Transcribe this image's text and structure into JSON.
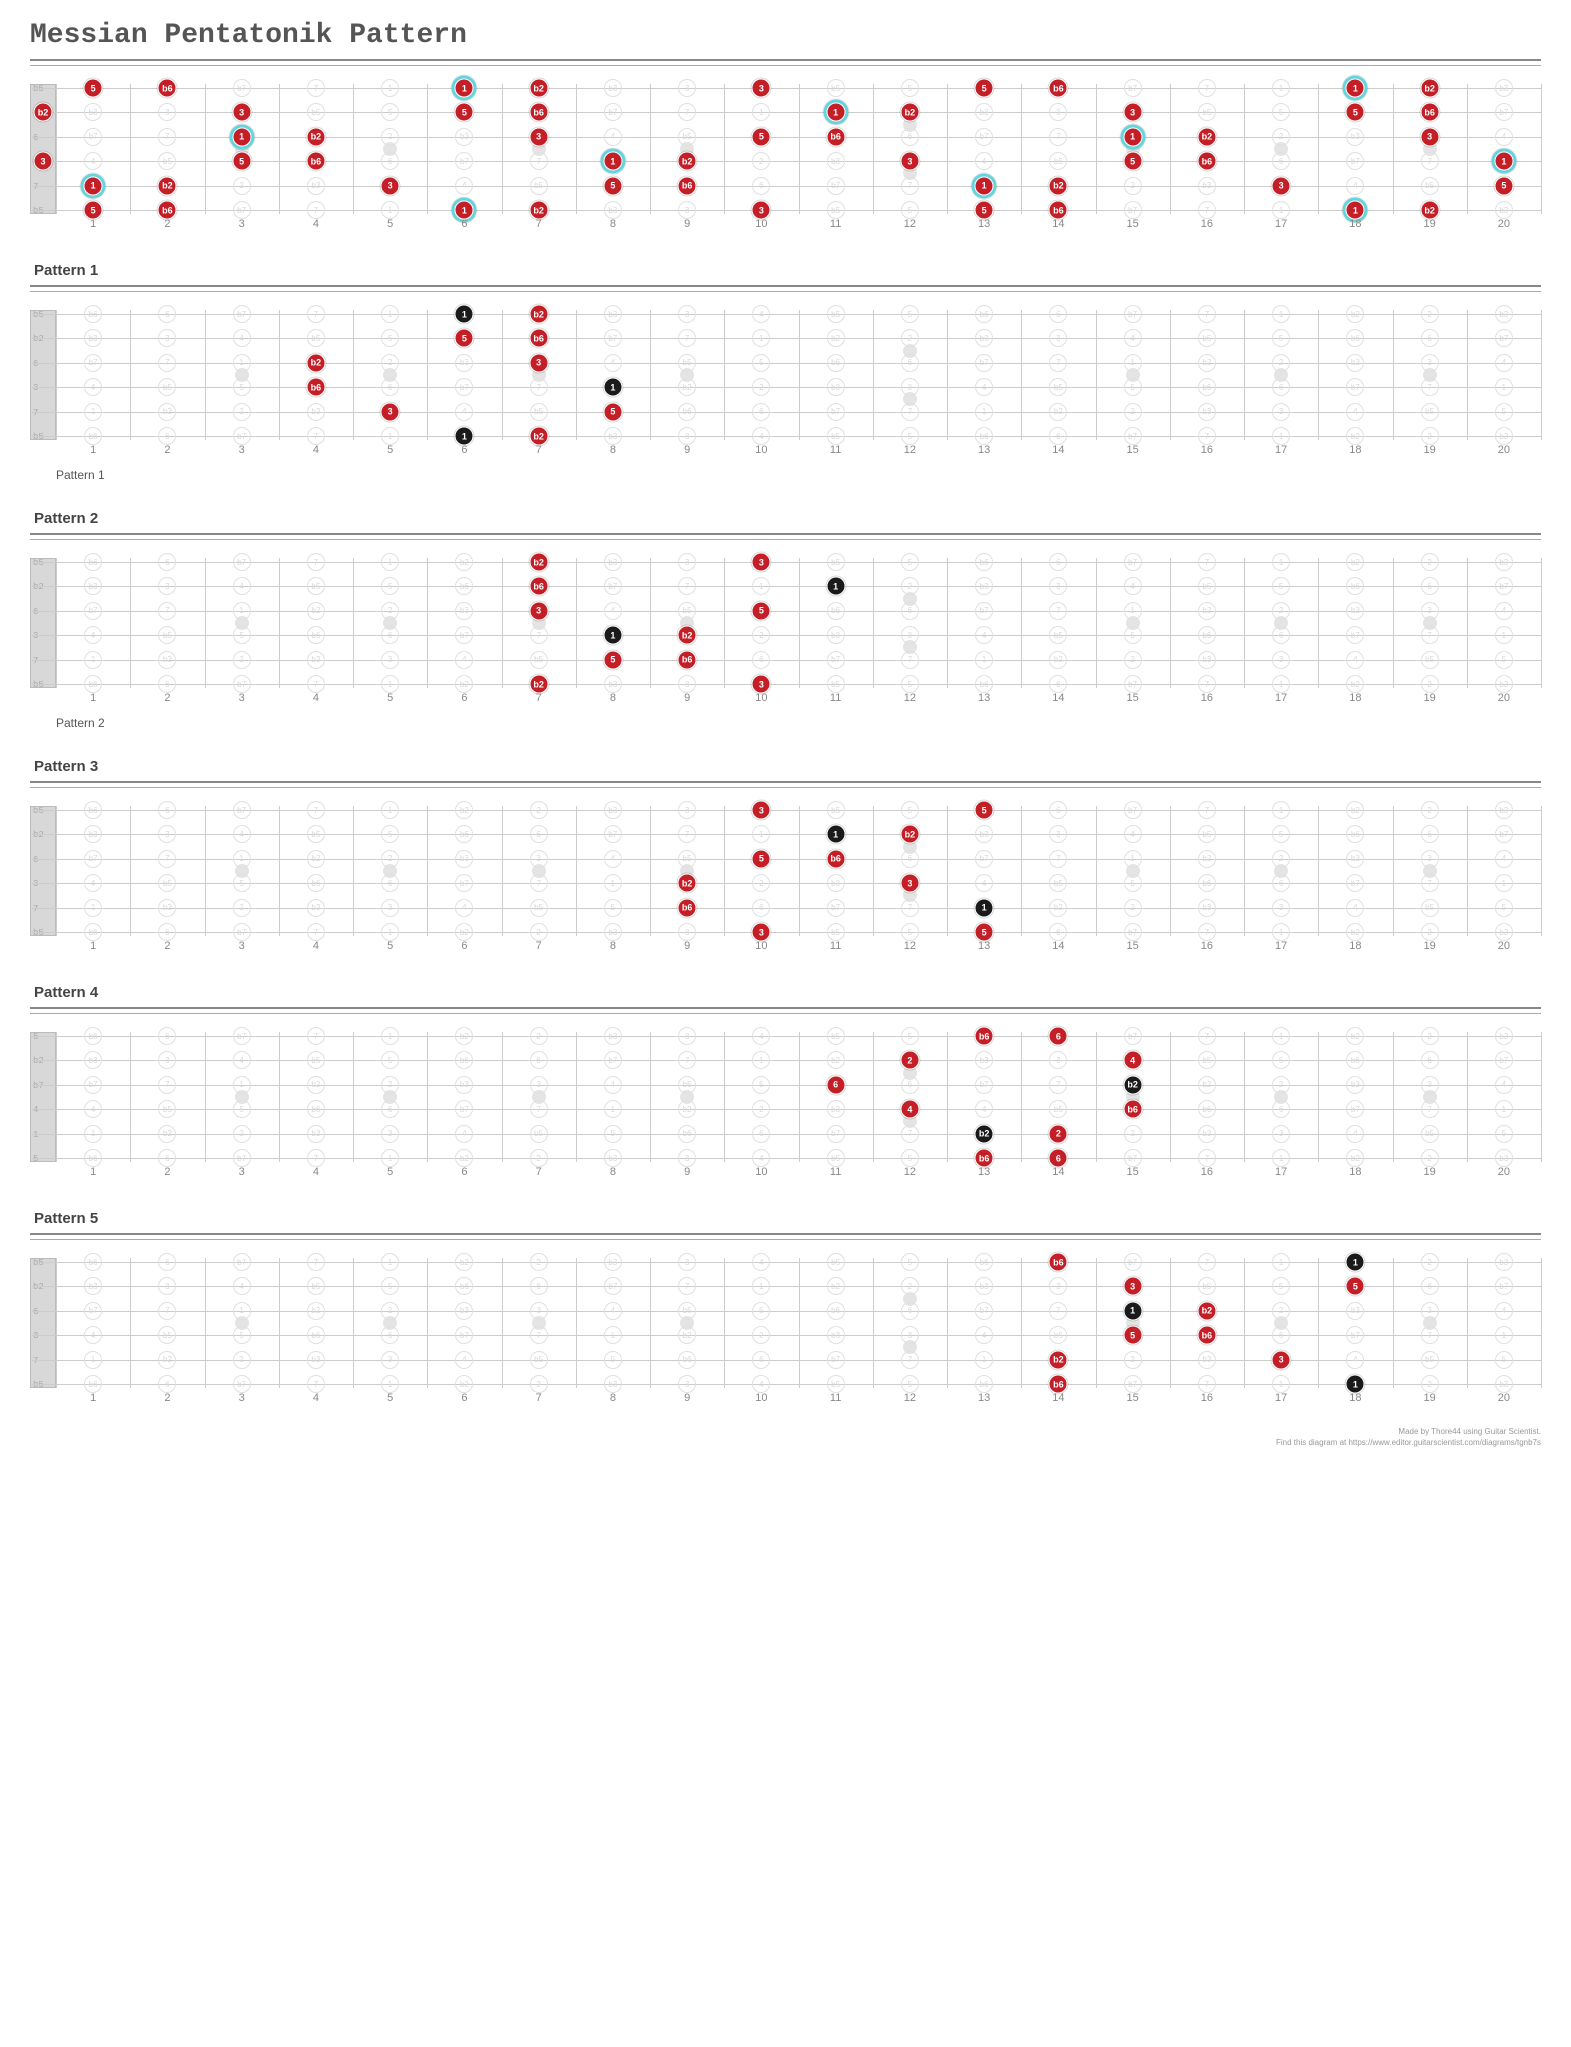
{
  "title": "Messian Pentatonik Pattern",
  "footer_line1": "Made by Thore44 using Guitar Scientist.",
  "footer_line2": "Find this diagram at https://www.editor.guitarscientist.com/diagrams/tgnb7s",
  "board": {
    "num_frets": 20,
    "num_strings": 6,
    "string_labels_main": [
      "b5",
      "b2",
      "6",
      "3",
      "7",
      "b5"
    ],
    "string_labels_p4": [
      "5",
      "b2",
      "b7",
      "4",
      "1",
      "5"
    ],
    "fret_markers_single": [
      3,
      5,
      7,
      9,
      15,
      17,
      19
    ],
    "fret_markers_double": [
      12
    ],
    "ghost_rows_main": [
      [
        "b6",
        "6",
        "b7",
        "7",
        "1",
        "b2",
        "2",
        "b3",
        "3",
        "4",
        "b5",
        "5",
        "b6",
        "6",
        "b7",
        "7",
        "1",
        "b2",
        "2",
        "b3"
      ],
      [
        "b3",
        "3",
        "4",
        "b5",
        "5",
        "b6",
        "6",
        "b7",
        "7",
        "1",
        "b2",
        "2",
        "b3",
        "3",
        "4",
        "b5",
        "5",
        "b6",
        "6",
        "b7"
      ],
      [
        "b7",
        "7",
        "1",
        "b2",
        "2",
        "b3",
        "3",
        "4",
        "b5",
        "5",
        "b6",
        "6",
        "b7",
        "7",
        "1",
        "b2",
        "2",
        "b3",
        "3",
        "4"
      ],
      [
        "4",
        "b5",
        "5",
        "b6",
        "6",
        "b7",
        "7",
        "1",
        "b2",
        "2",
        "b3",
        "3",
        "4",
        "b5",
        "5",
        "b6",
        "6",
        "b7",
        "7",
        "1"
      ],
      [
        "1",
        "b2",
        "2",
        "b3",
        "3",
        "4",
        "b5",
        "5",
        "b6",
        "6",
        "b7",
        "7",
        "1",
        "b2",
        "2",
        "b3",
        "3",
        "4",
        "b5",
        "5"
      ],
      [
        "b6",
        "6",
        "b7",
        "7",
        "1",
        "b2",
        "2",
        "b3",
        "3",
        "4",
        "b5",
        "5",
        "b6",
        "6",
        "b7",
        "7",
        "1",
        "b2",
        "2",
        "b3"
      ]
    ],
    "ghost_rows_p4": [
      [
        "b6",
        "6",
        "b7",
        "7",
        "1",
        "b2",
        "2",
        "b3",
        "3",
        "4",
        "b5",
        "5",
        "b6",
        "6",
        "b7",
        "7",
        "1",
        "b2",
        "2",
        "b3"
      ],
      [
        "b3",
        "3",
        "4",
        "b5",
        "5",
        "b6",
        "6",
        "b7",
        "7",
        "1",
        "b2",
        "2",
        "b3",
        "3",
        "4",
        "b5",
        "5",
        "b6",
        "6",
        "b7"
      ],
      [
        "b7",
        "7",
        "1",
        "b2",
        "2",
        "b3",
        "3",
        "4",
        "b5",
        "5",
        "b6",
        "6",
        "b7",
        "7",
        "1",
        "b2",
        "2",
        "b3",
        "3",
        "4"
      ],
      [
        "4",
        "b5",
        "5",
        "b6",
        "6",
        "b7",
        "7",
        "1",
        "b2",
        "2",
        "b3",
        "3",
        "4",
        "b5",
        "5",
        "b6",
        "6",
        "b7",
        "7",
        "1"
      ],
      [
        "1",
        "b2",
        "2",
        "b3",
        "3",
        "4",
        "b5",
        "5",
        "b6",
        "6",
        "b7",
        "7",
        "1",
        "b2",
        "2",
        "b3",
        "3",
        "4",
        "b5",
        "5"
      ],
      [
        "b6",
        "6",
        "b7",
        "7",
        "1",
        "b2",
        "2",
        "b3",
        "3",
        "4",
        "b5",
        "5",
        "b6",
        "6",
        "b7",
        "7",
        "1",
        "b2",
        "2",
        "b3"
      ]
    ]
  },
  "diagrams": [
    {
      "label": "",
      "caption": "",
      "ghost_set": "main",
      "show_nut_dots": true,
      "nut_dots": [
        {
          "string": 2,
          "label": "b2",
          "type": "red"
        },
        {
          "string": 4,
          "label": "3",
          "type": "red"
        }
      ],
      "dots": [
        {
          "string": 1,
          "fret": 1,
          "label": "5",
          "type": "red"
        },
        {
          "string": 1,
          "fret": 2,
          "label": "b6",
          "type": "red"
        },
        {
          "string": 1,
          "fret": 6,
          "label": "1",
          "type": "cyan"
        },
        {
          "string": 1,
          "fret": 7,
          "label": "b2",
          "type": "red"
        },
        {
          "string": 1,
          "fret": 10,
          "label": "3",
          "type": "red"
        },
        {
          "string": 1,
          "fret": 13,
          "label": "5",
          "type": "red"
        },
        {
          "string": 1,
          "fret": 14,
          "label": "b6",
          "type": "red"
        },
        {
          "string": 1,
          "fret": 18,
          "label": "1",
          "type": "cyan"
        },
        {
          "string": 1,
          "fret": 19,
          "label": "b2",
          "type": "red"
        },
        {
          "string": 2,
          "fret": 3,
          "label": "3",
          "type": "red"
        },
        {
          "string": 2,
          "fret": 6,
          "label": "5",
          "type": "red"
        },
        {
          "string": 2,
          "fret": 7,
          "label": "b6",
          "type": "red"
        },
        {
          "string": 2,
          "fret": 11,
          "label": "1",
          "type": "cyan"
        },
        {
          "string": 2,
          "fret": 12,
          "label": "b2",
          "type": "red"
        },
        {
          "string": 2,
          "fret": 15,
          "label": "3",
          "type": "red"
        },
        {
          "string": 2,
          "fret": 18,
          "label": "5",
          "type": "red"
        },
        {
          "string": 2,
          "fret": 19,
          "label": "b6",
          "type": "red"
        },
        {
          "string": 3,
          "fret": 3,
          "label": "1",
          "type": "cyan"
        },
        {
          "string": 3,
          "fret": 4,
          "label": "b2",
          "type": "red"
        },
        {
          "string": 3,
          "fret": 7,
          "label": "3",
          "type": "red"
        },
        {
          "string": 3,
          "fret": 10,
          "label": "5",
          "type": "red"
        },
        {
          "string": 3,
          "fret": 11,
          "label": "b6",
          "type": "red"
        },
        {
          "string": 3,
          "fret": 15,
          "label": "1",
          "type": "cyan"
        },
        {
          "string": 3,
          "fret": 16,
          "label": "b2",
          "type": "red"
        },
        {
          "string": 3,
          "fret": 19,
          "label": "3",
          "type": "red"
        },
        {
          "string": 4,
          "fret": 3,
          "label": "5",
          "type": "red"
        },
        {
          "string": 4,
          "fret": 4,
          "label": "b6",
          "type": "red"
        },
        {
          "string": 4,
          "fret": 8,
          "label": "1",
          "type": "cyan"
        },
        {
          "string": 4,
          "fret": 9,
          "label": "b2",
          "type": "red"
        },
        {
          "string": 4,
          "fret": 12,
          "label": "3",
          "type": "red"
        },
        {
          "string": 4,
          "fret": 15,
          "label": "5",
          "type": "red"
        },
        {
          "string": 4,
          "fret": 16,
          "label": "b6",
          "type": "red"
        },
        {
          "string": 4,
          "fret": 20,
          "label": "1",
          "type": "cyan"
        },
        {
          "string": 5,
          "fret": 1,
          "label": "1",
          "type": "cyan"
        },
        {
          "string": 5,
          "fret": 2,
          "label": "b2",
          "type": "red"
        },
        {
          "string": 5,
          "fret": 5,
          "label": "3",
          "type": "red"
        },
        {
          "string": 5,
          "fret": 8,
          "label": "5",
          "type": "red"
        },
        {
          "string": 5,
          "fret": 9,
          "label": "b6",
          "type": "red"
        },
        {
          "string": 5,
          "fret": 13,
          "label": "1",
          "type": "cyan"
        },
        {
          "string": 5,
          "fret": 14,
          "label": "b2",
          "type": "red"
        },
        {
          "string": 5,
          "fret": 17,
          "label": "3",
          "type": "red"
        },
        {
          "string": 5,
          "fret": 20,
          "label": "5",
          "type": "red"
        },
        {
          "string": 6,
          "fret": 1,
          "label": "5",
          "type": "red"
        },
        {
          "string": 6,
          "fret": 2,
          "label": "b6",
          "type": "red"
        },
        {
          "string": 6,
          "fret": 6,
          "label": "1",
          "type": "cyan"
        },
        {
          "string": 6,
          "fret": 7,
          "label": "b2",
          "type": "red"
        },
        {
          "string": 6,
          "fret": 10,
          "label": "3",
          "type": "red"
        },
        {
          "string": 6,
          "fret": 13,
          "label": "5",
          "type": "red"
        },
        {
          "string": 6,
          "fret": 14,
          "label": "b6",
          "type": "red"
        },
        {
          "string": 6,
          "fret": 18,
          "label": "1",
          "type": "cyan"
        },
        {
          "string": 6,
          "fret": 19,
          "label": "b2",
          "type": "red"
        }
      ]
    },
    {
      "label": "Pattern 1",
      "caption": "Pattern 1",
      "ghost_set": "main",
      "dots": [
        {
          "string": 1,
          "fret": 6,
          "label": "1",
          "type": "black"
        },
        {
          "string": 1,
          "fret": 7,
          "label": "b2",
          "type": "red"
        },
        {
          "string": 2,
          "fret": 6,
          "label": "5",
          "type": "red"
        },
        {
          "string": 2,
          "fret": 7,
          "label": "b6",
          "type": "red"
        },
        {
          "string": 3,
          "fret": 4,
          "label": "b2",
          "type": "red"
        },
        {
          "string": 3,
          "fret": 7,
          "label": "3",
          "type": "red"
        },
        {
          "string": 4,
          "fret": 4,
          "label": "b6",
          "type": "red"
        },
        {
          "string": 4,
          "fret": 8,
          "label": "1",
          "type": "black"
        },
        {
          "string": 5,
          "fret": 5,
          "label": "3",
          "type": "red"
        },
        {
          "string": 5,
          "fret": 8,
          "label": "5",
          "type": "red"
        },
        {
          "string": 6,
          "fret": 6,
          "label": "1",
          "type": "black"
        },
        {
          "string": 6,
          "fret": 7,
          "label": "b2",
          "type": "red"
        }
      ]
    },
    {
      "label": "Pattern 2",
      "caption": "Pattern 2",
      "ghost_set": "main",
      "dots": [
        {
          "string": 1,
          "fret": 7,
          "label": "b2",
          "type": "red"
        },
        {
          "string": 1,
          "fret": 10,
          "label": "3",
          "type": "red"
        },
        {
          "string": 2,
          "fret": 7,
          "label": "b6",
          "type": "red"
        },
        {
          "string": 2,
          "fret": 11,
          "label": "1",
          "type": "black"
        },
        {
          "string": 3,
          "fret": 7,
          "label": "3",
          "type": "red"
        },
        {
          "string": 3,
          "fret": 10,
          "label": "5",
          "type": "red"
        },
        {
          "string": 4,
          "fret": 8,
          "label": "1",
          "type": "black"
        },
        {
          "string": 4,
          "fret": 9,
          "label": "b2",
          "type": "red"
        },
        {
          "string": 5,
          "fret": 8,
          "label": "5",
          "type": "red"
        },
        {
          "string": 5,
          "fret": 9,
          "label": "b6",
          "type": "red"
        },
        {
          "string": 6,
          "fret": 7,
          "label": "b2",
          "type": "red"
        },
        {
          "string": 6,
          "fret": 10,
          "label": "3",
          "type": "red"
        }
      ]
    },
    {
      "label": "Pattern 3",
      "caption": "",
      "ghost_set": "main",
      "dots": [
        {
          "string": 1,
          "fret": 10,
          "label": "3",
          "type": "red"
        },
        {
          "string": 1,
          "fret": 13,
          "label": "5",
          "type": "red"
        },
        {
          "string": 2,
          "fret": 11,
          "label": "1",
          "type": "black"
        },
        {
          "string": 2,
          "fret": 12,
          "label": "b2",
          "type": "red"
        },
        {
          "string": 3,
          "fret": 10,
          "label": "5",
          "type": "red"
        },
        {
          "string": 3,
          "fret": 11,
          "label": "b6",
          "type": "red"
        },
        {
          "string": 4,
          "fret": 9,
          "label": "b2",
          "type": "red"
        },
        {
          "string": 4,
          "fret": 12,
          "label": "3",
          "type": "red"
        },
        {
          "string": 5,
          "fret": 9,
          "label": "b6",
          "type": "red"
        },
        {
          "string": 5,
          "fret": 13,
          "label": "1",
          "type": "black"
        },
        {
          "string": 6,
          "fret": 10,
          "label": "3",
          "type": "red"
        },
        {
          "string": 6,
          "fret": 13,
          "label": "5",
          "type": "red"
        }
      ]
    },
    {
      "label": "Pattern 4",
      "caption": "",
      "ghost_set": "p4",
      "dots": [
        {
          "string": 1,
          "fret": 13,
          "label": "b6",
          "type": "red"
        },
        {
          "string": 1,
          "fret": 14,
          "label": "6",
          "type": "red"
        },
        {
          "string": 2,
          "fret": 12,
          "label": "2",
          "type": "red"
        },
        {
          "string": 2,
          "fret": 15,
          "label": "4",
          "type": "red"
        },
        {
          "string": 3,
          "fret": 11,
          "label": "6",
          "type": "red"
        },
        {
          "string": 3,
          "fret": 15,
          "label": "b2",
          "type": "black"
        },
        {
          "string": 4,
          "fret": 12,
          "label": "4",
          "type": "red"
        },
        {
          "string": 4,
          "fret": 15,
          "label": "b6",
          "type": "red"
        },
        {
          "string": 5,
          "fret": 13,
          "label": "b2",
          "type": "black"
        },
        {
          "string": 5,
          "fret": 14,
          "label": "2",
          "type": "red"
        },
        {
          "string": 6,
          "fret": 13,
          "label": "b6",
          "type": "red"
        },
        {
          "string": 6,
          "fret": 14,
          "label": "6",
          "type": "red"
        }
      ]
    },
    {
      "label": "Pattern 5",
      "caption": "",
      "ghost_set": "main",
      "dots": [
        {
          "string": 1,
          "fret": 14,
          "label": "b6",
          "type": "red"
        },
        {
          "string": 1,
          "fret": 18,
          "label": "1",
          "type": "black"
        },
        {
          "string": 2,
          "fret": 15,
          "label": "3",
          "type": "red"
        },
        {
          "string": 2,
          "fret": 18,
          "label": "5",
          "type": "red"
        },
        {
          "string": 3,
          "fret": 15,
          "label": "1",
          "type": "black"
        },
        {
          "string": 3,
          "fret": 16,
          "label": "b2",
          "type": "red"
        },
        {
          "string": 4,
          "fret": 15,
          "label": "5",
          "type": "red"
        },
        {
          "string": 4,
          "fret": 16,
          "label": "b6",
          "type": "red"
        },
        {
          "string": 5,
          "fret": 14,
          "label": "b2",
          "type": "red"
        },
        {
          "string": 5,
          "fret": 17,
          "label": "3",
          "type": "red"
        },
        {
          "string": 6,
          "fret": 14,
          "label": "b6",
          "type": "red"
        },
        {
          "string": 6,
          "fret": 18,
          "label": "1",
          "type": "black"
        }
      ]
    }
  ]
}
